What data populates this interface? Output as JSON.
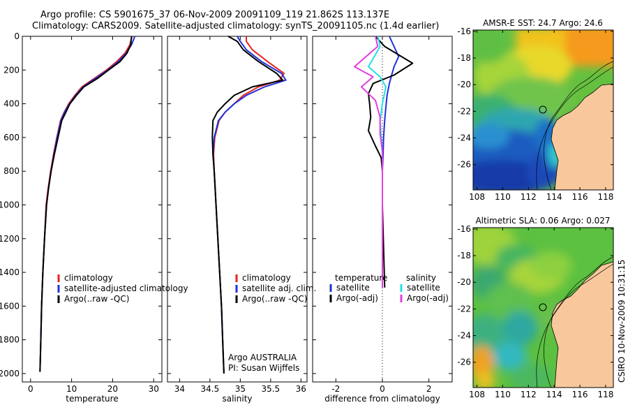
{
  "header": {
    "line1": "Argo profile: CS 5901675_37 06-Nov-2009 20091109_119 21.862S 113.137E",
    "line2": "Climatology: CARS2009. Satellite-adjusted climatology: synTS_20091105.nc (1.4d earlier)"
  },
  "side_label": "CSIRO 10-Nov-2009 10:31:15",
  "colors": {
    "clim": "#e8231e",
    "sat": "#1f30d8",
    "argo": "#000000",
    "sal_sat": "#22e0e6",
    "sal_argo": "#e23ee0"
  },
  "chart_data": [
    {
      "type": "line",
      "panel": "temperature",
      "xlabel": "temperature",
      "xlim": [
        -2,
        32
      ],
      "xticks": [
        0,
        10,
        20,
        30
      ],
      "ylim": [
        0,
        2050
      ],
      "yticks": [
        0,
        200,
        400,
        600,
        800,
        1000,
        1200,
        1400,
        1600,
        1800,
        2000
      ],
      "series": [
        {
          "name": "climatology",
          "color_key": "clim",
          "x": [
            24.7,
            24.2,
            23.0,
            21.0,
            18.5,
            15.5,
            12.5,
            10.8,
            9.3,
            8.2,
            7.3,
            6.4,
            5.6,
            4.9,
            4.3,
            3.8,
            3.4,
            3.0,
            2.7,
            2.5,
            2.3
          ],
          "y": [
            0,
            50,
            100,
            150,
            200,
            250,
            300,
            350,
            400,
            450,
            500,
            600,
            700,
            800,
            900,
            1000,
            1200,
            1400,
            1600,
            1800,
            1990
          ]
        },
        {
          "name": "satellite-adjusted climatology",
          "color_key": "sat",
          "x": [
            25.4,
            24.6,
            23.3,
            21.4,
            18.8,
            15.8,
            12.8,
            11.0,
            9.5,
            8.3,
            7.4,
            6.5,
            5.7,
            5.0,
            4.4,
            3.9,
            3.4,
            3.0,
            2.7,
            2.5,
            2.3
          ],
          "y": [
            0,
            50,
            100,
            150,
            200,
            250,
            300,
            350,
            400,
            450,
            500,
            600,
            700,
            800,
            900,
            1000,
            1200,
            1400,
            1600,
            1800,
            1990
          ]
        },
        {
          "name": "Argo(..raw -QC)",
          "color_key": "argo",
          "x": [
            24.6,
            24.4,
            23.5,
            21.8,
            19.0,
            16.3,
            13.0,
            11.2,
            9.6,
            8.6,
            7.6,
            6.7,
            5.8,
            5.0,
            4.4,
            3.9,
            3.4,
            3.0,
            2.7,
            2.5,
            2.3
          ],
          "y": [
            0,
            50,
            100,
            150,
            200,
            250,
            300,
            350,
            400,
            450,
            500,
            600,
            700,
            800,
            900,
            1000,
            1200,
            1400,
            1600,
            1800,
            1990
          ]
        }
      ],
      "legend": [
        "climatology",
        "satellite-adjusted climatology",
        "Argo(..raw -QC)"
      ],
      "legend_place": "bottom-right"
    },
    {
      "type": "line",
      "panel": "salinity",
      "xlabel": "salinity",
      "xlim": [
        33.8,
        36.1
      ],
      "xticks": [
        34,
        34.5,
        35,
        35.5,
        36
      ],
      "ylim": [
        0,
        2050
      ],
      "series": [
        {
          "name": "climatology",
          "color_key": "clim",
          "x": [
            35.1,
            35.1,
            35.2,
            35.45,
            35.72,
            35.65,
            35.3,
            35.05,
            34.9,
            34.75,
            34.65,
            34.58,
            34.56,
            34.57,
            34.6,
            34.63,
            34.66,
            34.69,
            34.71,
            34.72,
            34.73
          ],
          "y": [
            0,
            30,
            80,
            150,
            220,
            260,
            300,
            350,
            400,
            450,
            500,
            600,
            700,
            800,
            1000,
            1200,
            1400,
            1600,
            1800,
            1900,
            2000
          ]
        },
        {
          "name": "satellite adj. clim.",
          "color_key": "sat",
          "x": [
            34.95,
            35.0,
            35.1,
            35.35,
            35.68,
            35.75,
            35.4,
            35.1,
            34.9,
            34.75,
            34.64,
            34.57,
            34.55,
            34.57,
            34.6,
            34.63,
            34.66,
            34.69,
            34.71,
            34.72,
            34.73
          ],
          "y": [
            0,
            30,
            80,
            150,
            220,
            260,
            300,
            350,
            400,
            450,
            500,
            600,
            700,
            800,
            1000,
            1200,
            1400,
            1600,
            1800,
            1900,
            2000
          ]
        },
        {
          "name": "Argo(..raw -QC)",
          "color_key": "argo",
          "x": [
            34.8,
            34.95,
            35.05,
            35.3,
            35.6,
            35.7,
            35.2,
            34.9,
            34.75,
            34.62,
            34.55,
            34.54,
            34.55,
            34.57,
            34.6,
            34.63,
            34.66,
            34.69,
            34.71,
            34.72,
            34.73
          ],
          "y": [
            0,
            30,
            80,
            150,
            220,
            260,
            300,
            350,
            400,
            450,
            500,
            600,
            700,
            800,
            1000,
            1200,
            1400,
            1600,
            1800,
            1900,
            2000
          ]
        }
      ],
      "legend": [
        "climatology",
        "satellite adj. clim.",
        "Argo(..raw -QC)"
      ],
      "legend_place": "bottom-right",
      "annotations": [
        "Argo AUSTRALIA",
        "PI: Susan Wijffels"
      ]
    },
    {
      "type": "line",
      "panel": "difference",
      "xlabel": "difference from climatology",
      "xlim": [
        -3.0,
        3.0
      ],
      "xticks": [
        -2,
        0,
        2
      ],
      "ylim": [
        0,
        2050
      ],
      "legend_headers": [
        "temperature",
        "salinity"
      ],
      "series": [
        {
          "name": "satellite",
          "group": "temperature",
          "color_key": "sat",
          "x": [
            0.3,
            0.5,
            0.7,
            0.5,
            0.4,
            0.3,
            0.2,
            0.15,
            0.1,
            0.05,
            0.03,
            0.0,
            0.0,
            0.0
          ],
          "y": [
            0,
            60,
            120,
            180,
            230,
            280,
            350,
            420,
            500,
            600,
            700,
            800,
            1000,
            1490
          ]
        },
        {
          "name": "Argo(-adj)",
          "group": "temperature",
          "color_key": "argo",
          "x": [
            -0.3,
            0.1,
            1.3,
            0.5,
            -0.4,
            -0.6,
            -0.55,
            -0.5,
            -0.6,
            -0.3,
            -0.05,
            0.0,
            0.0,
            0.1
          ],
          "y": [
            0,
            60,
            160,
            230,
            280,
            340,
            400,
            480,
            560,
            650,
            720,
            800,
            1000,
            1490
          ]
        },
        {
          "name": "satellite",
          "group": "salinity",
          "color_key": "sal_sat",
          "x": [
            -0.2,
            -0.1,
            -0.6,
            -0.1,
            0.15,
            0.0,
            -0.1,
            -0.05,
            0.0,
            0.0,
            0.0,
            0.0
          ],
          "y": [
            0,
            60,
            180,
            240,
            300,
            400,
            500,
            600,
            700,
            800,
            1000,
            1490
          ]
        },
        {
          "name": "Argo(-adj)",
          "group": "salinity",
          "color_key": "sal_argo",
          "x": [
            -0.3,
            -0.2,
            -1.2,
            -0.4,
            -0.9,
            -0.3,
            -0.1,
            -0.1,
            0.0,
            0.0,
            0.0,
            0.0
          ],
          "y": [
            0,
            60,
            180,
            240,
            300,
            380,
            480,
            580,
            680,
            800,
            1000,
            1490
          ]
        }
      ],
      "legend": [
        "satellite",
        "Argo(-adj)",
        "satellite",
        "Argo(-adj)"
      ],
      "legend_place": "bottom-right"
    },
    {
      "type": "heatmap",
      "panel": "sst-map",
      "title": "AMSR-E SST: 24.7 Argo: 24.6",
      "xlim": [
        107.7,
        118.6
      ],
      "ylim": [
        -27.9,
        -15.9
      ],
      "xticks": [
        108,
        110,
        112,
        114,
        116,
        118
      ],
      "yticks": [
        -16,
        -18,
        -20,
        -22,
        -24,
        -26
      ],
      "float_position": {
        "lon": 113.137,
        "lat": -21.862
      }
    },
    {
      "type": "heatmap",
      "panel": "sla-map",
      "title": "Altimetric SLA: 0.06 Argo: 0.027",
      "xlim": [
        107.7,
        118.6
      ],
      "ylim": [
        -27.9,
        -15.9
      ],
      "xticks": [
        108,
        110,
        112,
        114,
        116,
        118
      ],
      "yticks": [
        -16,
        -18,
        -20,
        -22,
        -24,
        -26
      ],
      "float_position": {
        "lon": 113.137,
        "lat": -21.862
      }
    }
  ]
}
